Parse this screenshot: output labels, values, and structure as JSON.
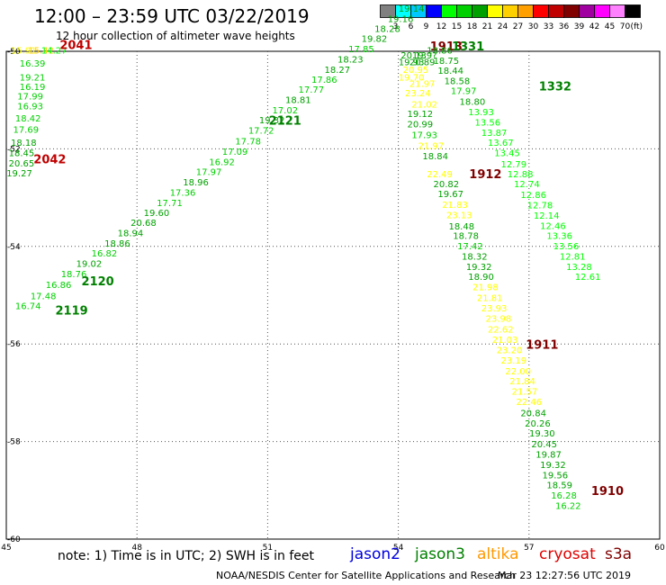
{
  "title": "12:00 – 23:59 UTC 03/22/2019",
  "subtitle": "12 hour collection of altimeter wave heights",
  "colorbar": {
    "unit": "(ft)",
    "colors": [
      "#808080",
      "#00ffff",
      "#00c8ff",
      "#0000ff",
      "#00ff00",
      "#00d000",
      "#00a000",
      "#ffff00",
      "#ffd000",
      "#ffa000",
      "#ff0000",
      "#c00000",
      "#800000",
      "#a000a0",
      "#ff00ff",
      "#ff80ff",
      "#000000"
    ],
    "labels": [
      "3",
      "6",
      "9",
      "12",
      "15",
      "18",
      "21",
      "24",
      "27",
      "30",
      "33",
      "36",
      "39",
      "42",
      "45",
      "70"
    ]
  },
  "axes": {
    "lon_min": 45,
    "lon_max": 60,
    "lat_min": -60,
    "lat_max": -50,
    "x_ticks": [
      "45",
      "48",
      "51",
      "54",
      "57",
      "60"
    ],
    "y_ticks": [
      "-50",
      "-52",
      "-54",
      "-56",
      "-58",
      "-60"
    ]
  },
  "tracks": [
    {
      "label": "2041",
      "label_color": "#c00000",
      "items": [
        {
          "lon": 45.4,
          "lat": -50.05,
          "v": "15.91",
          "c": "#ffff00"
        },
        {
          "lon": 45.8,
          "lat": -50.05,
          "v": "15.42",
          "c": "#ffd000"
        },
        {
          "lon": 46.1,
          "lat": -50.05,
          "v": "14.27",
          "c": "#00ff00"
        }
      ]
    },
    {
      "label": "2042",
      "label_color": "#c00000",
      "items": [
        {
          "lon": 45.6,
          "lat": -50.31,
          "v": "16.39",
          "c": "#00d000"
        },
        {
          "lon": 45.6,
          "lat": -50.6,
          "v": "19.21",
          "c": "#00d000"
        },
        {
          "lon": 45.6,
          "lat": -50.79,
          "v": "16.19",
          "c": "#00d000"
        },
        {
          "lon": 45.55,
          "lat": -50.99,
          "v": "17.99",
          "c": "#00d000"
        },
        {
          "lon": 45.55,
          "lat": -51.19,
          "v": "16.93",
          "c": "#00d000"
        },
        {
          "lon": 45.5,
          "lat": -51.44,
          "v": "18.42",
          "c": "#00d000"
        },
        {
          "lon": 45.45,
          "lat": -51.67,
          "v": "17.69",
          "c": "#00d000"
        },
        {
          "lon": 45.4,
          "lat": -51.94,
          "v": "18.18",
          "c": "#00a000"
        },
        {
          "lon": 45.35,
          "lat": -52.15,
          "v": "18.45",
          "c": "#00a000"
        },
        {
          "lon": 45.35,
          "lat": -52.36,
          "v": "20.65",
          "c": "#00a000"
        },
        {
          "lon": 45.3,
          "lat": -52.56,
          "v": "19.27",
          "c": "#00a000"
        }
      ]
    },
    {
      "label": "2119",
      "label_color": "#008000",
      "items": [
        {
          "lon": 45.5,
          "lat": -55.29,
          "v": "16.74",
          "c": "#00d000"
        },
        {
          "lon": 45.85,
          "lat": -55.08,
          "v": "17.48",
          "c": "#00d000"
        },
        {
          "lon": 46.2,
          "lat": -54.85,
          "v": "16.86",
          "c": "#00d000"
        }
      ]
    },
    {
      "label": "2120",
      "label_color": "#008000",
      "items": [
        {
          "lon": 46.55,
          "lat": -54.63,
          "v": "18.76",
          "c": "#00d000"
        },
        {
          "lon": 46.9,
          "lat": -54.42,
          "v": "19.02",
          "c": "#00a000"
        },
        {
          "lon": 47.25,
          "lat": -54.21,
          "v": "16.82",
          "c": "#00d000"
        },
        {
          "lon": 47.55,
          "lat": -54.0,
          "v": "18.86",
          "c": "#00a000"
        },
        {
          "lon": 47.85,
          "lat": -53.79,
          "v": "18.94",
          "c": "#00a000"
        },
        {
          "lon": 48.15,
          "lat": -53.58,
          "v": "20.68",
          "c": "#00a000"
        },
        {
          "lon": 48.45,
          "lat": -53.38,
          "v": "19.60",
          "c": "#00a000"
        },
        {
          "lon": 48.75,
          "lat": -53.17,
          "v": "17.71",
          "c": "#00d000"
        },
        {
          "lon": 49.05,
          "lat": -52.96,
          "v": "17.36",
          "c": "#00d000"
        },
        {
          "lon": 49.35,
          "lat": -52.75,
          "v": "18.96",
          "c": "#00a000"
        },
        {
          "lon": 49.65,
          "lat": -52.54,
          "v": "17.97",
          "c": "#00d000"
        },
        {
          "lon": 49.95,
          "lat": -52.33,
          "v": "16.92",
          "c": "#00d000"
        },
        {
          "lon": 50.25,
          "lat": -52.12,
          "v": "17.09",
          "c": "#00d000"
        }
      ]
    },
    {
      "label": "2121",
      "label_color": "#008000",
      "items": [
        {
          "lon": 50.55,
          "lat": -51.91,
          "v": "17.78",
          "c": "#00d000"
        },
        {
          "lon": 50.85,
          "lat": -51.69,
          "v": "17.72",
          "c": "#00d000"
        },
        {
          "lon": 51.1,
          "lat": -51.48,
          "v": "19.32",
          "c": "#00a000"
        },
        {
          "lon": 51.4,
          "lat": -51.27,
          "v": "17.02",
          "c": "#00d000"
        },
        {
          "lon": 51.7,
          "lat": -51.06,
          "v": "18.81",
          "c": "#00a000"
        },
        {
          "lon": 52.0,
          "lat": -50.85,
          "v": "17.77",
          "c": "#00d000"
        },
        {
          "lon": 52.3,
          "lat": -50.65,
          "v": "17.86",
          "c": "#00d000"
        },
        {
          "lon": 52.6,
          "lat": -50.44,
          "v": "18.27",
          "c": "#00a000"
        },
        {
          "lon": 52.9,
          "lat": -50.23,
          "v": "18.23",
          "c": "#00a000"
        },
        {
          "lon": 53.15,
          "lat": -50.02,
          "v": "17.85",
          "c": "#00d000"
        }
      ]
    },
    {
      "label": "",
      "label_color": "#008000",
      "items": [
        {
          "lon": 53.45,
          "lat": -49.81,
          "v": "19.82",
          "c": "#00a000"
        },
        {
          "lon": 53.75,
          "lat": -49.6,
          "v": "18.28",
          "c": "#00a000"
        },
        {
          "lon": 54.05,
          "lat": -49.4,
          "v": "19.16",
          "c": "#00a000"
        },
        {
          "lon": 54.3,
          "lat": -49.19,
          "v": "19.14",
          "c": "#00a000"
        }
      ]
    },
    {
      "label": "1913",
      "label_color": "#800000",
      "items": [
        {
          "lon": 54.35,
          "lat": -50.15,
          "v": "20.13",
          "c": "#00a000"
        },
        {
          "lon": 54.6,
          "lat": -50.15,
          "v": "19.9?",
          "c": "#00a000"
        },
        {
          "lon": 54.3,
          "lat": -50.29,
          "v": "19.93",
          "c": "#00a000"
        },
        {
          "lon": 54.55,
          "lat": -50.29,
          "v": "20.89",
          "c": "#00a000"
        },
        {
          "lon": 54.4,
          "lat": -50.44,
          "v": "20.95",
          "c": "#ffff00"
        },
        {
          "lon": 54.3,
          "lat": -50.6,
          "v": "19.70",
          "c": "#ffff00"
        },
        {
          "lon": 54.55,
          "lat": -50.73,
          "v": "21.97",
          "c": "#ffff00"
        },
        {
          "lon": 54.45,
          "lat": -50.92,
          "v": "23.24",
          "c": "#ffff00"
        },
        {
          "lon": 54.6,
          "lat": -51.15,
          "v": "21.02",
          "c": "#ffff00"
        },
        {
          "lon": 54.5,
          "lat": -51.35,
          "v": "19.12",
          "c": "#00a000"
        },
        {
          "lon": 54.5,
          "lat": -51.56,
          "v": "20.99",
          "c": "#00a000"
        },
        {
          "lon": 54.6,
          "lat": -51.78,
          "v": "17.93",
          "c": "#00d000"
        },
        {
          "lon": 54.75,
          "lat": -52.0,
          "v": "21.97",
          "c": "#ffff00"
        },
        {
          "lon": 54.85,
          "lat": -52.21,
          "v": "18.84",
          "c": "#00a000"
        }
      ]
    },
    {
      "label": "1912",
      "label_color": "#800000",
      "items": [
        {
          "lon": 54.95,
          "lat": -52.58,
          "v": "22.49",
          "c": "#ffff00"
        },
        {
          "lon": 55.1,
          "lat": -52.79,
          "v": "20.82",
          "c": "#00a000"
        },
        {
          "lon": 55.2,
          "lat": -52.99,
          "v": "19.67",
          "c": "#00a000"
        },
        {
          "lon": 55.3,
          "lat": -53.21,
          "v": "21.83",
          "c": "#ffff00"
        },
        {
          "lon": 55.4,
          "lat": -53.42,
          "v": "23.13",
          "c": "#ffff00"
        },
        {
          "lon": 55.45,
          "lat": -53.65,
          "v": "18.48",
          "c": "#00a000"
        },
        {
          "lon": 55.55,
          "lat": -53.85,
          "v": "18.78",
          "c": "#00a000"
        },
        {
          "lon": 55.65,
          "lat": -54.06,
          "v": "17.42",
          "c": "#00d000"
        },
        {
          "lon": 55.75,
          "lat": -54.27,
          "v": "18.32",
          "c": "#00a000"
        },
        {
          "lon": 55.85,
          "lat": -54.48,
          "v": "19.32",
          "c": "#00a000"
        },
        {
          "lon": 55.9,
          "lat": -54.69,
          "v": "18.90",
          "c": "#00a000"
        },
        {
          "lon": 56.0,
          "lat": -54.9,
          "v": "21.98",
          "c": "#ffff00"
        },
        {
          "lon": 56.1,
          "lat": -55.12,
          "v": "21.81",
          "c": "#ffff00"
        },
        {
          "lon": 56.2,
          "lat": -55.33,
          "v": "23.93",
          "c": "#ffff00"
        },
        {
          "lon": 56.3,
          "lat": -55.54,
          "v": "23.98",
          "c": "#ffff00"
        }
      ]
    },
    {
      "label": "1911",
      "label_color": "#800000",
      "items": [
        {
          "lon": 56.35,
          "lat": -55.77,
          "v": "22.62",
          "c": "#ffff00"
        },
        {
          "lon": 56.45,
          "lat": -55.98,
          "v": "21.03",
          "c": "#ffff00"
        },
        {
          "lon": 56.55,
          "lat": -56.19,
          "v": "23.20",
          "c": "#ffff00"
        },
        {
          "lon": 56.65,
          "lat": -56.4,
          "v": "23.19",
          "c": "#ffff00"
        },
        {
          "lon": 56.75,
          "lat": -56.62,
          "v": "22.00",
          "c": "#ffff00"
        },
        {
          "lon": 56.85,
          "lat": -56.83,
          "v": "21.84",
          "c": "#ffff00"
        },
        {
          "lon": 56.9,
          "lat": -57.04,
          "v": "21.57",
          "c": "#ffff00"
        },
        {
          "lon": 57.0,
          "lat": -57.25,
          "v": "22.46",
          "c": "#ffff00"
        },
        {
          "lon": 57.1,
          "lat": -57.48,
          "v": "20.84",
          "c": "#00a000"
        },
        {
          "lon": 57.2,
          "lat": -57.69,
          "v": "20.26",
          "c": "#00a000"
        },
        {
          "lon": 57.3,
          "lat": -57.9,
          "v": "19.30",
          "c": "#00a000"
        },
        {
          "lon": 57.35,
          "lat": -58.12,
          "v": "20.45",
          "c": "#00a000"
        },
        {
          "lon": 57.45,
          "lat": -58.33,
          "v": "19.87",
          "c": "#00a000"
        },
        {
          "lon": 57.55,
          "lat": -58.54,
          "v": "19.32",
          "c": "#00a000"
        },
        {
          "lon": 57.6,
          "lat": -58.75,
          "v": "19.56",
          "c": "#00a000"
        }
      ]
    },
    {
      "label": "1910",
      "label_color": "#800000",
      "items": [
        {
          "lon": 57.7,
          "lat": -58.96,
          "v": "18.59",
          "c": "#00a000"
        },
        {
          "lon": 57.8,
          "lat": -59.17,
          "v": "16.28",
          "c": "#00d000"
        },
        {
          "lon": 57.9,
          "lat": -59.38,
          "v": "16.22",
          "c": "#00d000"
        }
      ]
    },
    {
      "label": "1331",
      "label_color": "#008000",
      "items": [
        {
          "lon": 54.95,
          "lat": -50.05,
          "v": "18.86",
          "c": "#00a000"
        },
        {
          "lon": 55.1,
          "lat": -50.26,
          "v": "18.75",
          "c": "#00a000"
        },
        {
          "lon": 55.2,
          "lat": -50.46,
          "v": "18.44",
          "c": "#00a000"
        },
        {
          "lon": 55.35,
          "lat": -50.67,
          "v": "18.58",
          "c": "#00a000"
        },
        {
          "lon": 55.5,
          "lat": -50.88,
          "v": "17.97",
          "c": "#00d000"
        },
        {
          "lon": 55.7,
          "lat": -51.1,
          "v": "18.80",
          "c": "#00a000"
        }
      ]
    },
    {
      "label": "1332",
      "label_color": "#008000",
      "items": [
        {
          "lon": 55.9,
          "lat": -51.31,
          "v": "13.93",
          "c": "#00ff00"
        },
        {
          "lon": 56.05,
          "lat": -51.52,
          "v": "13.56",
          "c": "#00ff00"
        },
        {
          "lon": 56.2,
          "lat": -51.73,
          "v": "13.87",
          "c": "#00ff00"
        },
        {
          "lon": 56.35,
          "lat": -51.94,
          "v": "13.67",
          "c": "#00ff00"
        },
        {
          "lon": 56.5,
          "lat": -52.15,
          "v": "13.45",
          "c": "#00ff00"
        },
        {
          "lon": 56.65,
          "lat": -52.38,
          "v": "12.79",
          "c": "#00ff00"
        },
        {
          "lon": 56.8,
          "lat": -52.58,
          "v": "12.88",
          "c": "#00ff00"
        },
        {
          "lon": 56.95,
          "lat": -52.79,
          "v": "12.74",
          "c": "#00ff00"
        },
        {
          "lon": 57.1,
          "lat": -53.01,
          "v": "12.86",
          "c": "#00ff00"
        },
        {
          "lon": 57.25,
          "lat": -53.22,
          "v": "12.78",
          "c": "#00ff00"
        },
        {
          "lon": 57.4,
          "lat": -53.43,
          "v": "12.14",
          "c": "#00ff00"
        },
        {
          "lon": 57.55,
          "lat": -53.64,
          "v": "12.46",
          "c": "#00ff00"
        },
        {
          "lon": 57.7,
          "lat": -53.85,
          "v": "13.36",
          "c": "#00ff00"
        },
        {
          "lon": 57.85,
          "lat": -54.06,
          "v": "13.56",
          "c": "#00ff00"
        },
        {
          "lon": 58.0,
          "lat": -54.27,
          "v": "12.81",
          "c": "#00ff00"
        },
        {
          "lon": 58.15,
          "lat": -54.48,
          "v": "13.28",
          "c": "#00ff00"
        },
        {
          "lon": 58.35,
          "lat": -54.69,
          "v": "12.61",
          "c": "#00ff00"
        }
      ]
    }
  ],
  "note": "note:  1) Time is in UTC;  2) SWH is in feet",
  "satellites": [
    {
      "name": "jason2",
      "color": "#0000e0"
    },
    {
      "name": "jason3",
      "color": "#008000"
    },
    {
      "name": "altika",
      "color": "#ff9900"
    },
    {
      "name": "cryosat",
      "color": "#e00000"
    },
    {
      "name": "s3a",
      "color": "#800000"
    }
  ],
  "credit": "NOAA/NESDIS Center for Satellite Applications and Research",
  "timestamp": "Mar 23 12:27:56 UTC 2019"
}
